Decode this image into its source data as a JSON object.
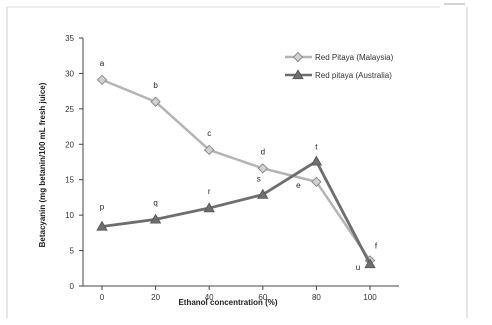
{
  "chart_data": {
    "type": "line",
    "xlabel": "Ethanol concentration (%)",
    "ylabel": "Betacyanin (mg betanin/100 mL fresh juice)",
    "x": [
      0,
      20,
      40,
      60,
      80,
      100
    ],
    "ylim": [
      0,
      35
    ],
    "yticks": [
      0,
      5,
      10,
      15,
      20,
      25,
      30,
      35
    ],
    "legend_position": "top-right",
    "grid": false,
    "series": [
      {
        "name": "Red Pitaya (Malaysia)",
        "marker": "diamond",
        "color": "#b4b4b4",
        "values": [
          29.1,
          26.0,
          19.2,
          16.6,
          14.7,
          3.6
        ],
        "point_labels": [
          "a",
          "b",
          "c",
          "d",
          "e",
          "f"
        ]
      },
      {
        "name": "Red pitaya (Australia)",
        "marker": "triangle",
        "color": "#6e6e6e",
        "values": [
          8.4,
          9.4,
          11.0,
          12.9,
          17.6,
          3.1
        ],
        "point_labels": [
          "p",
          "q",
          "r",
          "s",
          "t",
          "u"
        ]
      }
    ]
  }
}
